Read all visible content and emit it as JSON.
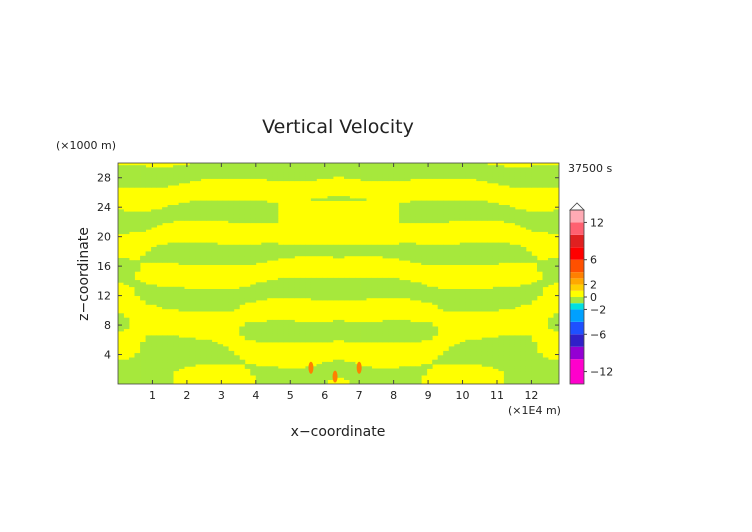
{
  "chart_data": {
    "type": "heatmap",
    "title": "Vertical Velocity",
    "xlabel": "x−coordinate",
    "ylabel": "z−coordinate",
    "x_unit": "(×1E4 m)",
    "y_unit": "(×1000 m)",
    "time_label": "37500 s",
    "xlim": [
      0,
      12.8
    ],
    "ylim": [
      0,
      30
    ],
    "x_ticks": [
      1,
      2,
      3,
      4,
      5,
      6,
      7,
      8,
      9,
      10,
      11,
      12
    ],
    "y_ticks": [
      4,
      8,
      12,
      16,
      20,
      24,
      28
    ],
    "colorbar": {
      "min": -14,
      "max": 14,
      "tick_values": [
        12,
        6,
        2,
        0,
        -2,
        -6,
        -12
      ],
      "tick_labels": [
        "12",
        "6",
        "2",
        "0",
        "−2",
        "−6",
        "−12"
      ],
      "levels": [
        {
          "from": -14,
          "to": -10,
          "color": "#ff00cc"
        },
        {
          "from": -10,
          "to": -8,
          "color": "#9400d3"
        },
        {
          "from": -8,
          "to": -6,
          "color": "#3020c8"
        },
        {
          "from": -6,
          "to": -4,
          "color": "#1e50ff"
        },
        {
          "from": -4,
          "to": -2,
          "color": "#00a0ff"
        },
        {
          "from": -2,
          "to": -1,
          "color": "#00e0e0"
        },
        {
          "from": -1,
          "to": 0,
          "color": "#a6e83c"
        },
        {
          "from": 0,
          "to": 1,
          "color": "#ffff00"
        },
        {
          "from": 1,
          "to": 2,
          "color": "#ffd000"
        },
        {
          "from": 2,
          "to": 3,
          "color": "#ffa800"
        },
        {
          "from": 3,
          "to": 4,
          "color": "#ff8000"
        },
        {
          "from": 4,
          "to": 6,
          "color": "#ff5000"
        },
        {
          "from": 6,
          "to": 8,
          "color": "#ff0000"
        },
        {
          "from": 8,
          "to": 10,
          "color": "#e02020"
        },
        {
          "from": 10,
          "to": 12,
          "color": "#ff6070"
        },
        {
          "from": 12,
          "to": 14,
          "color": "#ffaab4"
        }
      ]
    },
    "field": {
      "description_colors": {
        "negative_small": "#a6e83c",
        "positive_small": "#ffff00",
        "positive_peak": "#ff8000"
      },
      "peaks": [
        {
          "x": 5.6,
          "z": 2.2,
          "value": 4
        },
        {
          "x": 7.0,
          "z": 2.2,
          "value": 4
        },
        {
          "x": 6.3,
          "z": 1.0,
          "value": 3
        }
      ],
      "pattern": "symmetric wave beams radiating upward from a source near x=6.4, z=0"
    }
  }
}
